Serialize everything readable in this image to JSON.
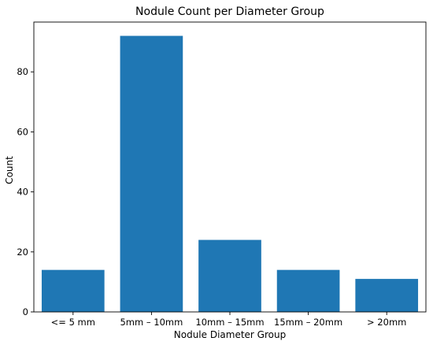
{
  "chart_data": {
    "type": "bar",
    "title": "Nodule Count per Diameter Group",
    "xlabel": "Nodule Diameter Group",
    "ylabel": "Count",
    "categories": [
      "<= 5 mm",
      "5mm – 10mm",
      "10mm – 15mm",
      "15mm – 20mm",
      "> 20mm"
    ],
    "values": [
      14,
      92,
      24,
      14,
      11
    ],
    "ylim": [
      0,
      96.6
    ],
    "yticks": [
      0,
      20,
      40,
      60,
      80
    ],
    "bar_color": "#1f77b4",
    "grid": false,
    "legend": false
  }
}
